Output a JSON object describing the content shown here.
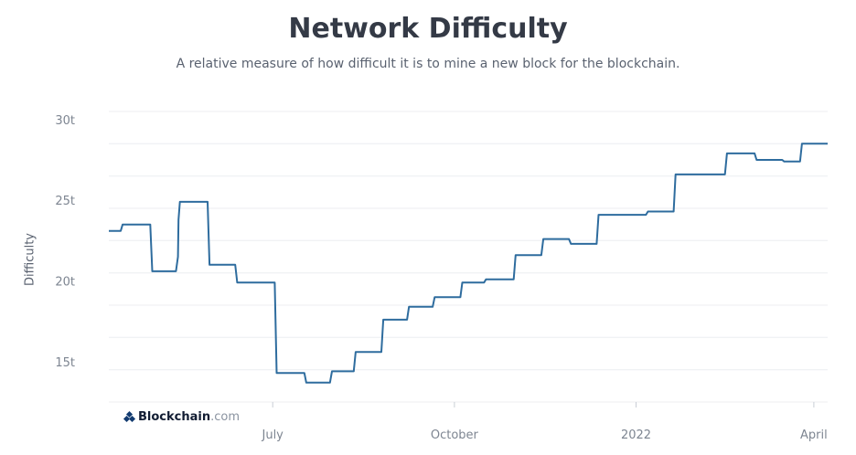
{
  "chart_data": {
    "type": "line",
    "title": "Network Difficulty",
    "subtitle": "A relative measure of how difficult it is to mine a new block for the blockchain.",
    "ylabel": "Difficulty",
    "y_ticks": [
      "15t",
      "20t",
      "25t",
      "30t"
    ],
    "x_ticks": [
      "July",
      "October",
      "2022",
      "April"
    ],
    "ylim": [
      12.5,
      30.5
    ],
    "x_domain_days": [
      0,
      364
    ],
    "grid": true,
    "legend": "none",
    "line_color": "#2e6c9e",
    "x_tick_days": [
      83,
      175,
      267,
      357
    ],
    "series": [
      {
        "x_days": [
          0,
          6,
          7,
          21,
          22,
          34,
          35,
          35.3,
          36,
          50,
          51,
          64,
          65,
          84,
          85,
          99,
          100,
          112,
          113,
          124,
          125,
          138,
          139,
          151,
          152,
          164,
          165,
          178,
          179,
          190,
          191,
          205,
          206,
          219,
          220,
          233,
          234,
          247,
          248,
          272,
          273,
          286,
          287,
          312,
          313,
          327,
          328,
          341,
          342,
          350,
          351,
          364
        ],
        "values": [
          23.1,
          23.1,
          23.5,
          23.5,
          20.6,
          20.6,
          21.5,
          23.8,
          24.9,
          24.9,
          21.0,
          21.0,
          19.9,
          19.9,
          14.3,
          14.3,
          13.7,
          13.7,
          14.4,
          14.4,
          15.6,
          15.6,
          17.6,
          17.6,
          18.4,
          18.4,
          19.0,
          19.0,
          19.9,
          19.9,
          20.1,
          20.1,
          21.6,
          21.6,
          22.6,
          22.6,
          22.3,
          22.3,
          24.1,
          24.1,
          24.3,
          24.3,
          26.6,
          26.6,
          27.9,
          27.9,
          27.5,
          27.5,
          27.4,
          27.4,
          28.5,
          28.5
        ]
      }
    ]
  },
  "watermark": {
    "brand": "Blockchain",
    "domain": ".com"
  }
}
